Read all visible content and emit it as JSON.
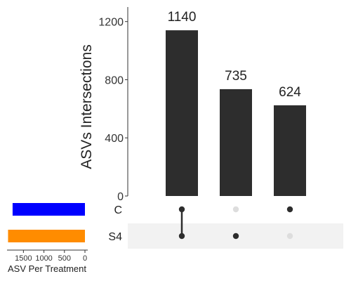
{
  "chart_data": {
    "type": "upset",
    "colors": {
      "bar": "#2d2d2d",
      "dot_active": "#2d2d2d",
      "dot_inactive": "#dddddd",
      "set_C": "#0000ff",
      "set_S4": "#ff8c00",
      "band": "#f2f2f2"
    },
    "intersections": {
      "ylabel": "ASVs Intersections",
      "ylim": [
        0,
        1300
      ],
      "yticks": [
        0,
        400,
        800,
        1200
      ],
      "bars": [
        {
          "value": 1140,
          "label": "1140",
          "members": [
            "C",
            "S4"
          ]
        },
        {
          "value": 735,
          "label": "735",
          "members": [
            "S4"
          ]
        },
        {
          "value": 624,
          "label": "624",
          "members": [
            "C"
          ]
        }
      ]
    },
    "sets": {
      "xlabel": "ASV Per Treatment",
      "xlim": [
        0,
        1900
      ],
      "xticks": [
        1500,
        1000,
        500,
        0
      ],
      "xtick_labels": [
        "1500",
        "1000",
        "500",
        "0"
      ],
      "items": [
        {
          "name": "C",
          "value": 1764
        },
        {
          "name": "S4",
          "value": 1875
        }
      ]
    }
  }
}
